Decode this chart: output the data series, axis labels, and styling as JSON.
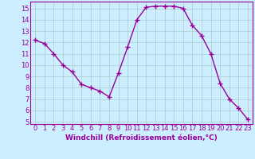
{
  "x": [
    0,
    1,
    2,
    3,
    4,
    5,
    6,
    7,
    8,
    9,
    10,
    11,
    12,
    13,
    14,
    15,
    16,
    17,
    18,
    19,
    20,
    21,
    22,
    23
  ],
  "y": [
    12.2,
    11.9,
    11.0,
    10.0,
    9.4,
    8.3,
    8.0,
    7.7,
    7.2,
    9.3,
    11.6,
    14.0,
    15.1,
    15.2,
    15.2,
    15.2,
    15.0,
    13.5,
    12.6,
    11.0,
    8.4,
    7.0,
    6.2,
    5.2
  ],
  "line_color": "#990099",
  "marker": "+",
  "markersize": 4,
  "linewidth": 1.0,
  "bg_color": "#cceeff",
  "grid_color": "#aacccc",
  "xlabel": "Windchill (Refroidissement éolien,°C)",
  "xlim": [
    -0.5,
    23.5
  ],
  "ylim": [
    4.8,
    15.6
  ],
  "yticks": [
    5,
    6,
    7,
    8,
    9,
    10,
    11,
    12,
    13,
    14,
    15
  ],
  "xticks": [
    0,
    1,
    2,
    3,
    4,
    5,
    6,
    7,
    8,
    9,
    10,
    11,
    12,
    13,
    14,
    15,
    16,
    17,
    18,
    19,
    20,
    21,
    22,
    23
  ],
  "tick_color": "#990099",
  "label_fontsize": 6.5,
  "tick_fontsize": 6.0
}
